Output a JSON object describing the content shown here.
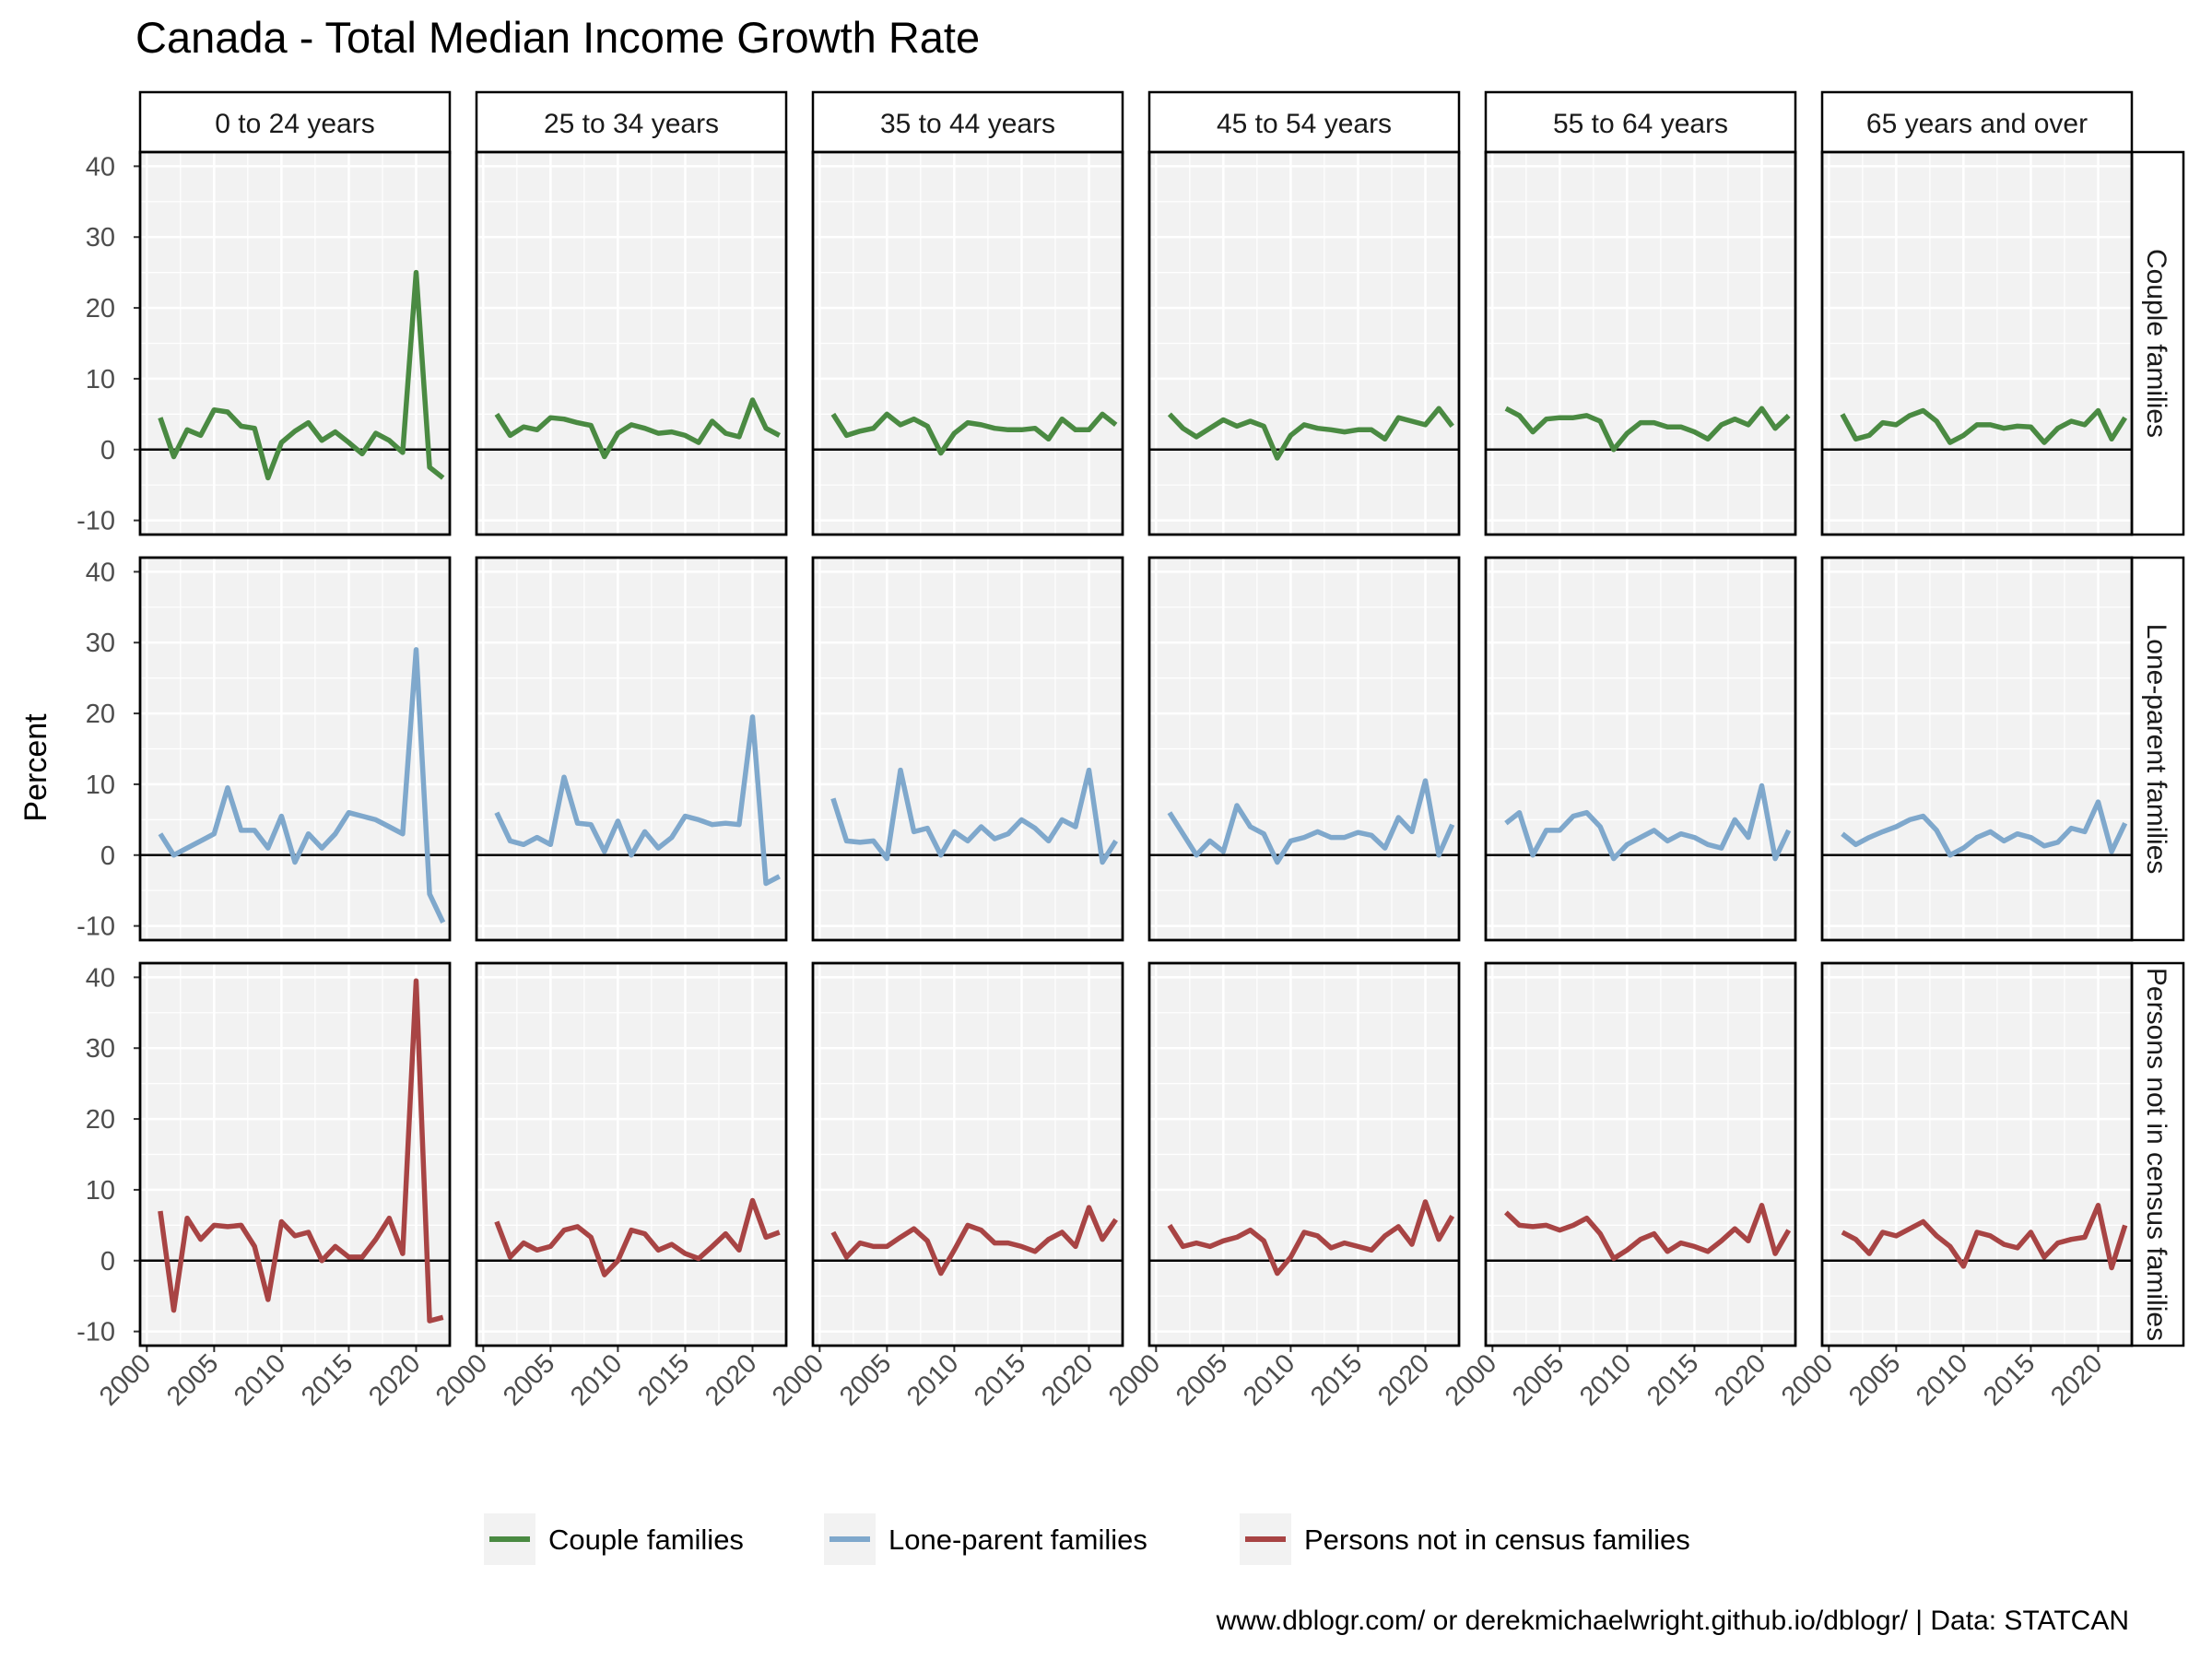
{
  "chart_data": {
    "type": "line",
    "title": "Canada - Total Median Income Growth Rate",
    "ylabel": "Percent",
    "xlabel": "",
    "xlim": [
      1999.5,
      2022.5
    ],
    "ylim": [
      -12,
      42
    ],
    "xticks": [
      2000,
      2005,
      2010,
      2015,
      2020
    ],
    "yticks": [
      -10,
      0,
      10,
      20,
      30,
      40
    ],
    "x": [
      2001,
      2002,
      2003,
      2004,
      2005,
      2006,
      2007,
      2008,
      2009,
      2010,
      2011,
      2012,
      2013,
      2014,
      2015,
      2016,
      2017,
      2018,
      2019,
      2020,
      2021,
      2022
    ],
    "columns": [
      "0 to 24 years",
      "25 to 34 years",
      "35 to 44 years",
      "45 to 54 years",
      "55 to 64 years",
      "65 years and over"
    ],
    "rows": [
      "Couple families",
      "Lone-parent families",
      "Persons not in census families"
    ],
    "colors": {
      "Couple families": "#4a8a42",
      "Lone-parent families": "#7fa8cc",
      "Persons not in census families": "#a84444"
    },
    "panel_background": "#f2f2f2",
    "grid": true,
    "hline_at": 0,
    "legend_position": "bottom",
    "series": [
      {
        "row": "Couple families",
        "column": "0 to 24 years",
        "values": [
          4.5,
          -1.0,
          2.8,
          2.0,
          5.6,
          5.3,
          3.3,
          3.0,
          -4.0,
          1.0,
          2.6,
          3.8,
          1.3,
          2.5,
          1.0,
          -0.6,
          2.3,
          1.3,
          -0.4,
          25.0,
          -2.5,
          -4.0
        ]
      },
      {
        "row": "Couple families",
        "column": "25 to 34 years",
        "values": [
          5.0,
          2.0,
          3.2,
          2.8,
          4.5,
          4.3,
          3.8,
          3.4,
          -1.0,
          2.3,
          3.5,
          3.0,
          2.3,
          2.5,
          2.0,
          1.0,
          4.0,
          2.3,
          1.8,
          7.0,
          3.0,
          2.0
        ]
      },
      {
        "row": "Couple families",
        "column": "35 to 44 years",
        "values": [
          5.0,
          2.0,
          2.6,
          3.0,
          5.0,
          3.5,
          4.3,
          3.3,
          -0.5,
          2.3,
          3.8,
          3.5,
          3.0,
          2.8,
          2.8,
          3.0,
          1.5,
          4.3,
          2.8,
          2.8,
          5.0,
          3.5
        ]
      },
      {
        "row": "Couple families",
        "column": "45 to 54 years",
        "values": [
          5.0,
          3.0,
          1.8,
          3.0,
          4.2,
          3.3,
          4.0,
          3.3,
          -1.2,
          2.0,
          3.5,
          3.0,
          2.8,
          2.5,
          2.8,
          2.8,
          1.5,
          4.5,
          4.0,
          3.5,
          5.8,
          3.3
        ]
      },
      {
        "row": "Couple families",
        "column": "55 to 64 years",
        "values": [
          5.8,
          4.8,
          2.5,
          4.3,
          4.5,
          4.5,
          4.8,
          4.0,
          0.0,
          2.3,
          3.8,
          3.8,
          3.2,
          3.2,
          2.5,
          1.5,
          3.5,
          4.3,
          3.5,
          5.8,
          3.0,
          4.8
        ]
      },
      {
        "row": "Couple families",
        "column": "65 years and over",
        "values": [
          5.0,
          1.5,
          2.0,
          3.8,
          3.5,
          4.8,
          5.5,
          4.0,
          1.0,
          2.0,
          3.5,
          3.5,
          3.0,
          3.3,
          3.2,
          1.0,
          3.0,
          4.0,
          3.5,
          5.5,
          1.5,
          4.5
        ]
      },
      {
        "row": "Lone-parent families",
        "column": "0 to 24 years",
        "values": [
          3.0,
          0.0,
          1.0,
          2.0,
          3.0,
          9.5,
          3.5,
          3.5,
          1.0,
          5.5,
          -1.0,
          3.0,
          1.0,
          3.0,
          6.0,
          5.5,
          5.0,
          4.0,
          3.0,
          29.0,
          -5.5,
          -9.5
        ]
      },
      {
        "row": "Lone-parent families",
        "column": "25 to 34 years",
        "values": [
          6.0,
          2.0,
          1.5,
          2.5,
          1.5,
          11.0,
          4.5,
          4.3,
          0.5,
          4.8,
          0.0,
          3.3,
          1.0,
          2.5,
          5.5,
          5.0,
          4.3,
          4.5,
          4.3,
          19.5,
          -4.0,
          -3.0
        ]
      },
      {
        "row": "Lone-parent families",
        "column": "35 to 44 years",
        "values": [
          8.0,
          2.0,
          1.8,
          2.0,
          -0.5,
          12.0,
          3.3,
          3.8,
          0.0,
          3.3,
          2.0,
          4.0,
          2.3,
          3.0,
          5.0,
          3.8,
          2.0,
          5.0,
          4.0,
          12.0,
          -1.0,
          2.0
        ]
      },
      {
        "row": "Lone-parent families",
        "column": "45 to 54 years",
        "values": [
          6.0,
          3.0,
          0.0,
          2.0,
          0.5,
          7.0,
          4.0,
          3.0,
          -1.0,
          2.0,
          2.5,
          3.3,
          2.5,
          2.5,
          3.2,
          2.8,
          1.0,
          5.3,
          3.3,
          10.5,
          0.0,
          4.3
        ]
      },
      {
        "row": "Lone-parent families",
        "column": "55 to 64 years",
        "values": [
          4.5,
          6.0,
          0.0,
          3.5,
          3.5,
          5.5,
          6.0,
          4.0,
          -0.5,
          1.5,
          2.5,
          3.5,
          2.0,
          3.0,
          2.5,
          1.5,
          1.0,
          5.0,
          2.5,
          9.8,
          -0.5,
          3.5
        ]
      },
      {
        "row": "Lone-parent families",
        "column": "65 years and over",
        "values": [
          3.0,
          1.5,
          2.5,
          3.3,
          4.0,
          5.0,
          5.5,
          3.5,
          0.0,
          1.0,
          2.5,
          3.3,
          2.0,
          3.0,
          2.5,
          1.3,
          1.8,
          3.8,
          3.3,
          7.5,
          0.5,
          4.5
        ]
      },
      {
        "row": "Persons not in census families",
        "column": "0 to 24 years",
        "values": [
          7.0,
          -7.0,
          6.0,
          3.0,
          5.0,
          4.8,
          5.0,
          2.0,
          -5.5,
          5.5,
          3.5,
          4.0,
          0.0,
          2.0,
          0.5,
          0.5,
          3.0,
          6.0,
          1.0,
          39.5,
          -8.5,
          -8.0
        ]
      },
      {
        "row": "Persons not in census families",
        "column": "25 to 34 years",
        "values": [
          5.5,
          0.5,
          2.5,
          1.5,
          2.0,
          4.3,
          4.8,
          3.3,
          -2.0,
          0.0,
          4.3,
          3.8,
          1.5,
          2.3,
          1.0,
          0.3,
          2.0,
          3.8,
          1.5,
          8.5,
          3.3,
          4.0
        ]
      },
      {
        "row": "Persons not in census families",
        "column": "35 to 44 years",
        "values": [
          4.0,
          0.5,
          2.5,
          2.0,
          2.0,
          3.3,
          4.5,
          2.8,
          -1.8,
          1.5,
          5.0,
          4.3,
          2.5,
          2.5,
          2.0,
          1.3,
          3.0,
          4.0,
          2.0,
          7.5,
          3.0,
          5.8
        ]
      },
      {
        "row": "Persons not in census families",
        "column": "45 to 54 years",
        "values": [
          5.0,
          2.0,
          2.5,
          2.0,
          2.8,
          3.3,
          4.3,
          2.8,
          -1.8,
          0.5,
          4.0,
          3.5,
          1.8,
          2.5,
          2.0,
          1.5,
          3.5,
          4.8,
          2.3,
          8.3,
          3.0,
          6.3
        ]
      },
      {
        "row": "Persons not in census families",
        "column": "55 to 64 years",
        "values": [
          6.8,
          5.0,
          4.8,
          5.0,
          4.3,
          5.0,
          6.0,
          3.8,
          0.3,
          1.5,
          3.0,
          3.8,
          1.3,
          2.5,
          2.0,
          1.3,
          2.8,
          4.5,
          2.8,
          7.8,
          1.0,
          4.3
        ]
      },
      {
        "row": "Persons not in census families",
        "column": "65 years and over",
        "values": [
          4.0,
          3.0,
          1.0,
          4.0,
          3.5,
          4.5,
          5.5,
          3.5,
          2.0,
          -0.8,
          4.0,
          3.5,
          2.3,
          1.8,
          4.0,
          0.5,
          2.5,
          3.0,
          3.3,
          7.8,
          -1.0,
          5.0
        ]
      }
    ],
    "legend": [
      "Couple families",
      "Lone-parent families",
      "Persons not in census families"
    ],
    "caption": "www.dblogr.com/ or derekmichaelwright.github.io/dblogr/ | Data: STATCAN"
  }
}
